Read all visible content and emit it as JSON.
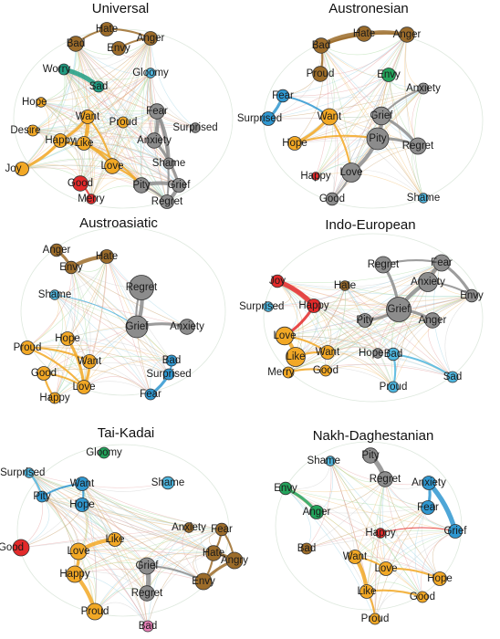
{
  "colors": {
    "cluster_brown": "#9c6c2a",
    "cluster_orange": "#f2a825",
    "cluster_gray": "#8c8c8c",
    "cluster_blue": "#2f97d0",
    "cluster_lightblue": "#4fb7e0",
    "cluster_teal": "#1f9b81",
    "cluster_green": "#23a35b",
    "cluster_red": "#e32a2a",
    "cluster_pink": "#e97fb8"
  },
  "panels": [
    {
      "title": "Universal",
      "nodes": [
        {
          "label": "Hate",
          "color": "brown",
          "size": 1
        },
        {
          "label": "Anger",
          "color": "brown",
          "size": 1
        },
        {
          "label": "Bad",
          "color": "brown",
          "size": 1.1
        },
        {
          "label": "Envy",
          "color": "brown",
          "size": 1
        },
        {
          "label": "Worry",
          "color": "teal",
          "size": 0.8
        },
        {
          "label": "Gloomy",
          "color": "lightblue",
          "size": 0.7
        },
        {
          "label": "Sad",
          "color": "teal",
          "size": 0.8
        },
        {
          "label": "Hope",
          "color": "orange",
          "size": 0.7
        },
        {
          "label": "Fear",
          "color": "gray",
          "size": 1.1
        },
        {
          "label": "Want",
          "color": "orange",
          "size": 1
        },
        {
          "label": "Proud",
          "color": "orange",
          "size": 0.8
        },
        {
          "label": "Desire",
          "color": "orange",
          "size": 0.8
        },
        {
          "label": "Surprised",
          "color": "gray",
          "size": 0.7
        },
        {
          "label": "Happy",
          "color": "orange",
          "size": 1
        },
        {
          "label": "Like",
          "color": "orange",
          "size": 1
        },
        {
          "label": "Anxiety",
          "color": "gray",
          "size": 1.1
        },
        {
          "label": "Love",
          "color": "orange",
          "size": 1.1
        },
        {
          "label": "Joy",
          "color": "orange",
          "size": 1
        },
        {
          "label": "Shame",
          "color": "gray",
          "size": 0.8
        },
        {
          "label": "Good",
          "color": "red",
          "size": 1.1
        },
        {
          "label": "Pity",
          "color": "gray",
          "size": 1.1
        },
        {
          "label": "Grief",
          "color": "gray",
          "size": 1
        },
        {
          "label": "Merry",
          "color": "red",
          "size": 0.7
        },
        {
          "label": "Regret",
          "color": "gray",
          "size": 1
        }
      ],
      "edges": [
        [
          "Worry",
          "Sad",
          5
        ],
        [
          "Want",
          "Like",
          4
        ],
        [
          "Want",
          "Happy",
          3
        ],
        [
          "Like",
          "Happy",
          3
        ],
        [
          "Happy",
          "Joy",
          3
        ],
        [
          "Like",
          "Love",
          3
        ],
        [
          "Want",
          "Love",
          2
        ],
        [
          "Fear",
          "Anxiety",
          4
        ],
        [
          "Fear",
          "Shame",
          3
        ],
        [
          "Anxiety",
          "Grief",
          3
        ],
        [
          "Pity",
          "Grief",
          4
        ],
        [
          "Grief",
          "Regret",
          4
        ],
        [
          "Pity",
          "Regret",
          2
        ],
        [
          "Hate",
          "Anger",
          2
        ],
        [
          "Bad",
          "Hate",
          2
        ],
        [
          "Envy",
          "Anger",
          2
        ],
        [
          "Good",
          "Merry",
          2
        ],
        [
          "Love",
          "Pity",
          2
        ],
        [
          "Like",
          "Pity",
          2
        ],
        [
          "Fear",
          "Regret",
          2
        ]
      ]
    },
    {
      "title": "Austronesian",
      "nodes": [
        {
          "label": "Hate",
          "color": "brown",
          "size": 1.1
        },
        {
          "label": "Anger",
          "color": "brown",
          "size": 1.1
        },
        {
          "label": "Bad",
          "color": "brown",
          "size": 1.1
        },
        {
          "label": "Proud",
          "color": "brown",
          "size": 1.1
        },
        {
          "label": "Envy",
          "color": "green",
          "size": 1
        },
        {
          "label": "Anxiety",
          "color": "gray",
          "size": 0.8
        },
        {
          "label": "Fear",
          "color": "blue",
          "size": 0.9
        },
        {
          "label": "Want",
          "color": "orange",
          "size": 1.2
        },
        {
          "label": "Grief",
          "color": "gray",
          "size": 1.3
        },
        {
          "label": "Surprised",
          "color": "blue",
          "size": 1
        },
        {
          "label": "Pity",
          "color": "gray",
          "size": 1.6
        },
        {
          "label": "Regret",
          "color": "gray",
          "size": 1.2
        },
        {
          "label": "Hope",
          "color": "orange",
          "size": 1
        },
        {
          "label": "Love",
          "color": "gray",
          "size": 1.4
        },
        {
          "label": "Happy",
          "color": "red",
          "size": 0.6
        },
        {
          "label": "Good",
          "color": "gray",
          "size": 0.9
        },
        {
          "label": "Shame",
          "color": "lightblue",
          "size": 0.7
        }
      ],
      "edges": [
        [
          "Bad",
          "Hate",
          5
        ],
        [
          "Hate",
          "Anger",
          3
        ],
        [
          "Bad",
          "Anger",
          2
        ],
        [
          "Bad",
          "Proud",
          2
        ],
        [
          "Grief",
          "Pity",
          4
        ],
        [
          "Pity",
          "Love",
          4
        ],
        [
          "Pity",
          "Regret",
          3
        ],
        [
          "Grief",
          "Regret",
          3
        ],
        [
          "Grief",
          "Anxiety",
          2
        ],
        [
          "Want",
          "Hope",
          3
        ],
        [
          "Fear",
          "Surprised",
          3
        ],
        [
          "Want",
          "Love",
          2
        ],
        [
          "Love",
          "Good",
          2
        ],
        [
          "Hope",
          "Pity",
          2
        ],
        [
          "Fear",
          "Want",
          2
        ]
      ]
    },
    {
      "title": "Austroasiatic",
      "nodes": [
        {
          "label": "Anger",
          "color": "brown",
          "size": 0.9
        },
        {
          "label": "Hate",
          "color": "brown",
          "size": 1
        },
        {
          "label": "Envy",
          "color": "brown",
          "size": 0.9
        },
        {
          "label": "Regret",
          "color": "gray",
          "size": 1.8
        },
        {
          "label": "Shame",
          "color": "lightblue",
          "size": 0.7
        },
        {
          "label": "Grief",
          "color": "gray",
          "size": 1.6
        },
        {
          "label": "Anxiety",
          "color": "gray",
          "size": 1.1
        },
        {
          "label": "Hope",
          "color": "orange",
          "size": 1
        },
        {
          "label": "Proud",
          "color": "orange",
          "size": 1
        },
        {
          "label": "Want",
          "color": "orange",
          "size": 1
        },
        {
          "label": "Bad",
          "color": "blue",
          "size": 0.8
        },
        {
          "label": "Good",
          "color": "orange",
          "size": 1
        },
        {
          "label": "Surprised",
          "color": "blue",
          "size": 0.8
        },
        {
          "label": "Love",
          "color": "orange",
          "size": 1
        },
        {
          "label": "Happy",
          "color": "orange",
          "size": 0.8
        },
        {
          "label": "Fear",
          "color": "blue",
          "size": 0.8
        }
      ],
      "edges": [
        [
          "Anger",
          "Envy",
          3
        ],
        [
          "Envy",
          "Hate",
          4
        ],
        [
          "Regret",
          "Grief",
          4
        ],
        [
          "Grief",
          "Anxiety",
          3
        ],
        [
          "Grief",
          "Regret",
          2
        ],
        [
          "Hope",
          "Love",
          3
        ],
        [
          "Want",
          "Love",
          3
        ],
        [
          "Good",
          "Love",
          2
        ],
        [
          "Happy",
          "Good",
          2
        ],
        [
          "Proud",
          "Love",
          2
        ],
        [
          "Bad",
          "Surprised",
          2
        ],
        [
          "Surprised",
          "Fear",
          3
        ],
        [
          "Proud",
          "Want",
          2
        ],
        [
          "Shame",
          "Grief",
          1
        ]
      ]
    },
    {
      "title": "Indo-European",
      "nodes": [
        {
          "label": "Regret",
          "color": "gray",
          "size": 1.2
        },
        {
          "label": "Fear",
          "color": "gray",
          "size": 1.2
        },
        {
          "label": "Joy",
          "color": "red",
          "size": 0.9
        },
        {
          "label": "Anxiety",
          "color": "gray",
          "size": 1.4
        },
        {
          "label": "Hate",
          "color": "brown",
          "size": 0.7
        },
        {
          "label": "Envy",
          "color": "gray",
          "size": 0.9
        },
        {
          "label": "Surprised",
          "color": "lightblue",
          "size": 0.7
        },
        {
          "label": "Happy",
          "color": "red",
          "size": 1
        },
        {
          "label": "Grief",
          "color": "gray",
          "size": 1.8
        },
        {
          "label": "Pity",
          "color": "gray",
          "size": 1
        },
        {
          "label": "Anger",
          "color": "gray",
          "size": 1.1
        },
        {
          "label": "Love",
          "color": "orange",
          "size": 1.3
        },
        {
          "label": "Like",
          "color": "orange",
          "size": 1.4
        },
        {
          "label": "Want",
          "color": "orange",
          "size": 1
        },
        {
          "label": "Hope",
          "color": "gray",
          "size": 0.7
        },
        {
          "label": "Bad",
          "color": "lightblue",
          "size": 0.9
        },
        {
          "label": "Merry",
          "color": "orange",
          "size": 0.8
        },
        {
          "label": "Good",
          "color": "orange",
          "size": 0.8
        },
        {
          "label": "Sad",
          "color": "lightblue",
          "size": 0.8
        },
        {
          "label": "Proud",
          "color": "lightblue",
          "size": 0.8
        }
      ],
      "edges": [
        [
          "Joy",
          "Happy",
          5
        ],
        [
          "Happy",
          "Love",
          3
        ],
        [
          "Love",
          "Like",
          4
        ],
        [
          "Love",
          "Want",
          2
        ],
        [
          "Like",
          "Want",
          2
        ],
        [
          "Regret",
          "Grief",
          3
        ],
        [
          "Grief",
          "Anxiety",
          4
        ],
        [
          "Anxiety",
          "Fear",
          4
        ],
        [
          "Grief",
          "Anger",
          3
        ],
        [
          "Grief",
          "Pity",
          3
        ],
        [
          "Fear",
          "Envy",
          3
        ],
        [
          "Anxiety",
          "Envy",
          2
        ],
        [
          "Bad",
          "Sad",
          2
        ],
        [
          "Bad",
          "Proud",
          2
        ],
        [
          "Merry",
          "Good",
          2
        ],
        [
          "Regret",
          "Fear",
          2
        ]
      ]
    },
    {
      "title": "Tai-Kadai",
      "nodes": [
        {
          "label": "Gloomy",
          "color": "green",
          "size": 0.8
        },
        {
          "label": "Surprised",
          "color": "lightblue",
          "size": 0.7
        },
        {
          "label": "Want",
          "color": "blue",
          "size": 1
        },
        {
          "label": "Shame",
          "color": "lightblue",
          "size": 0.9
        },
        {
          "label": "Pity",
          "color": "blue",
          "size": 0.8
        },
        {
          "label": "Hope",
          "color": "blue",
          "size": 1
        },
        {
          "label": "Like",
          "color": "orange",
          "size": 1
        },
        {
          "label": "Anxiety",
          "color": "brown",
          "size": 0.7
        },
        {
          "label": "Fear",
          "color": "brown",
          "size": 0.9
        },
        {
          "label": "Good",
          "color": "red",
          "size": 1.2
        },
        {
          "label": "Love",
          "color": "orange",
          "size": 1.2
        },
        {
          "label": "Hate",
          "color": "brown",
          "size": 1.1
        },
        {
          "label": "Angry",
          "color": "brown",
          "size": 1.2
        },
        {
          "label": "Happy",
          "color": "orange",
          "size": 1.2
        },
        {
          "label": "Grief",
          "color": "gray",
          "size": 1.2
        },
        {
          "label": "Envy",
          "color": "brown",
          "size": 1.2
        },
        {
          "label": "Regret",
          "color": "gray",
          "size": 1.1
        },
        {
          "label": "Proud",
          "color": "orange",
          "size": 1.2
        },
        {
          "label": "Bad",
          "color": "pink",
          "size": 0.8
        }
      ],
      "edges": [
        [
          "Love",
          "Like",
          4
        ],
        [
          "Love",
          "Happy",
          3
        ],
        [
          "Happy",
          "Proud",
          4
        ],
        [
          "Grief",
          "Regret",
          5
        ],
        [
          "Hate",
          "Angry",
          3
        ],
        [
          "Fear",
          "Hate",
          2
        ],
        [
          "Envy",
          "Angry",
          3
        ],
        [
          "Hate",
          "Envy",
          2
        ],
        [
          "Want",
          "Hope",
          2
        ],
        [
          "Pity",
          "Want",
          2
        ],
        [
          "Surprised",
          "Pity",
          2
        ],
        [
          "Fear",
          "Angry",
          2
        ],
        [
          "Grief",
          "Envy",
          2
        ]
      ]
    },
    {
      "title": "Nakh-Daghestanian",
      "nodes": [
        {
          "label": "Pity",
          "color": "gray",
          "size": 1.1
        },
        {
          "label": "Shame",
          "color": "lightblue",
          "size": 0.7
        },
        {
          "label": "Regret",
          "color": "gray",
          "size": 1.1
        },
        {
          "label": "Anxiety",
          "color": "blue",
          "size": 1
        },
        {
          "label": "Envy",
          "color": "green",
          "size": 0.9
        },
        {
          "label": "Fear",
          "color": "blue",
          "size": 1
        },
        {
          "label": "Anger",
          "color": "green",
          "size": 1
        },
        {
          "label": "Happy",
          "color": "red",
          "size": 0.7
        },
        {
          "label": "Grief",
          "color": "blue",
          "size": 1
        },
        {
          "label": "Bad",
          "color": "brown",
          "size": 0.8
        },
        {
          "label": "Want",
          "color": "orange",
          "size": 1
        },
        {
          "label": "Love",
          "color": "orange",
          "size": 1
        },
        {
          "label": "Hope",
          "color": "orange",
          "size": 1
        },
        {
          "label": "Like",
          "color": "orange",
          "size": 1
        },
        {
          "label": "Good",
          "color": "orange",
          "size": 0.8
        },
        {
          "label": "Proud",
          "color": "orange",
          "size": 0.8
        }
      ],
      "edges": [
        [
          "Pity",
          "Regret",
          5
        ],
        [
          "Anxiety",
          "Fear",
          3
        ],
        [
          "Anxiety",
          "Grief",
          5
        ],
        [
          "Envy",
          "Anger",
          3
        ],
        [
          "Want",
          "Like",
          4
        ],
        [
          "Want",
          "Love",
          2
        ],
        [
          "Like",
          "Good",
          2
        ],
        [
          "Love",
          "Hope",
          2
        ],
        [
          "Like",
          "Proud",
          2
        ],
        [
          "Happy",
          "Grief",
          1
        ]
      ]
    }
  ]
}
